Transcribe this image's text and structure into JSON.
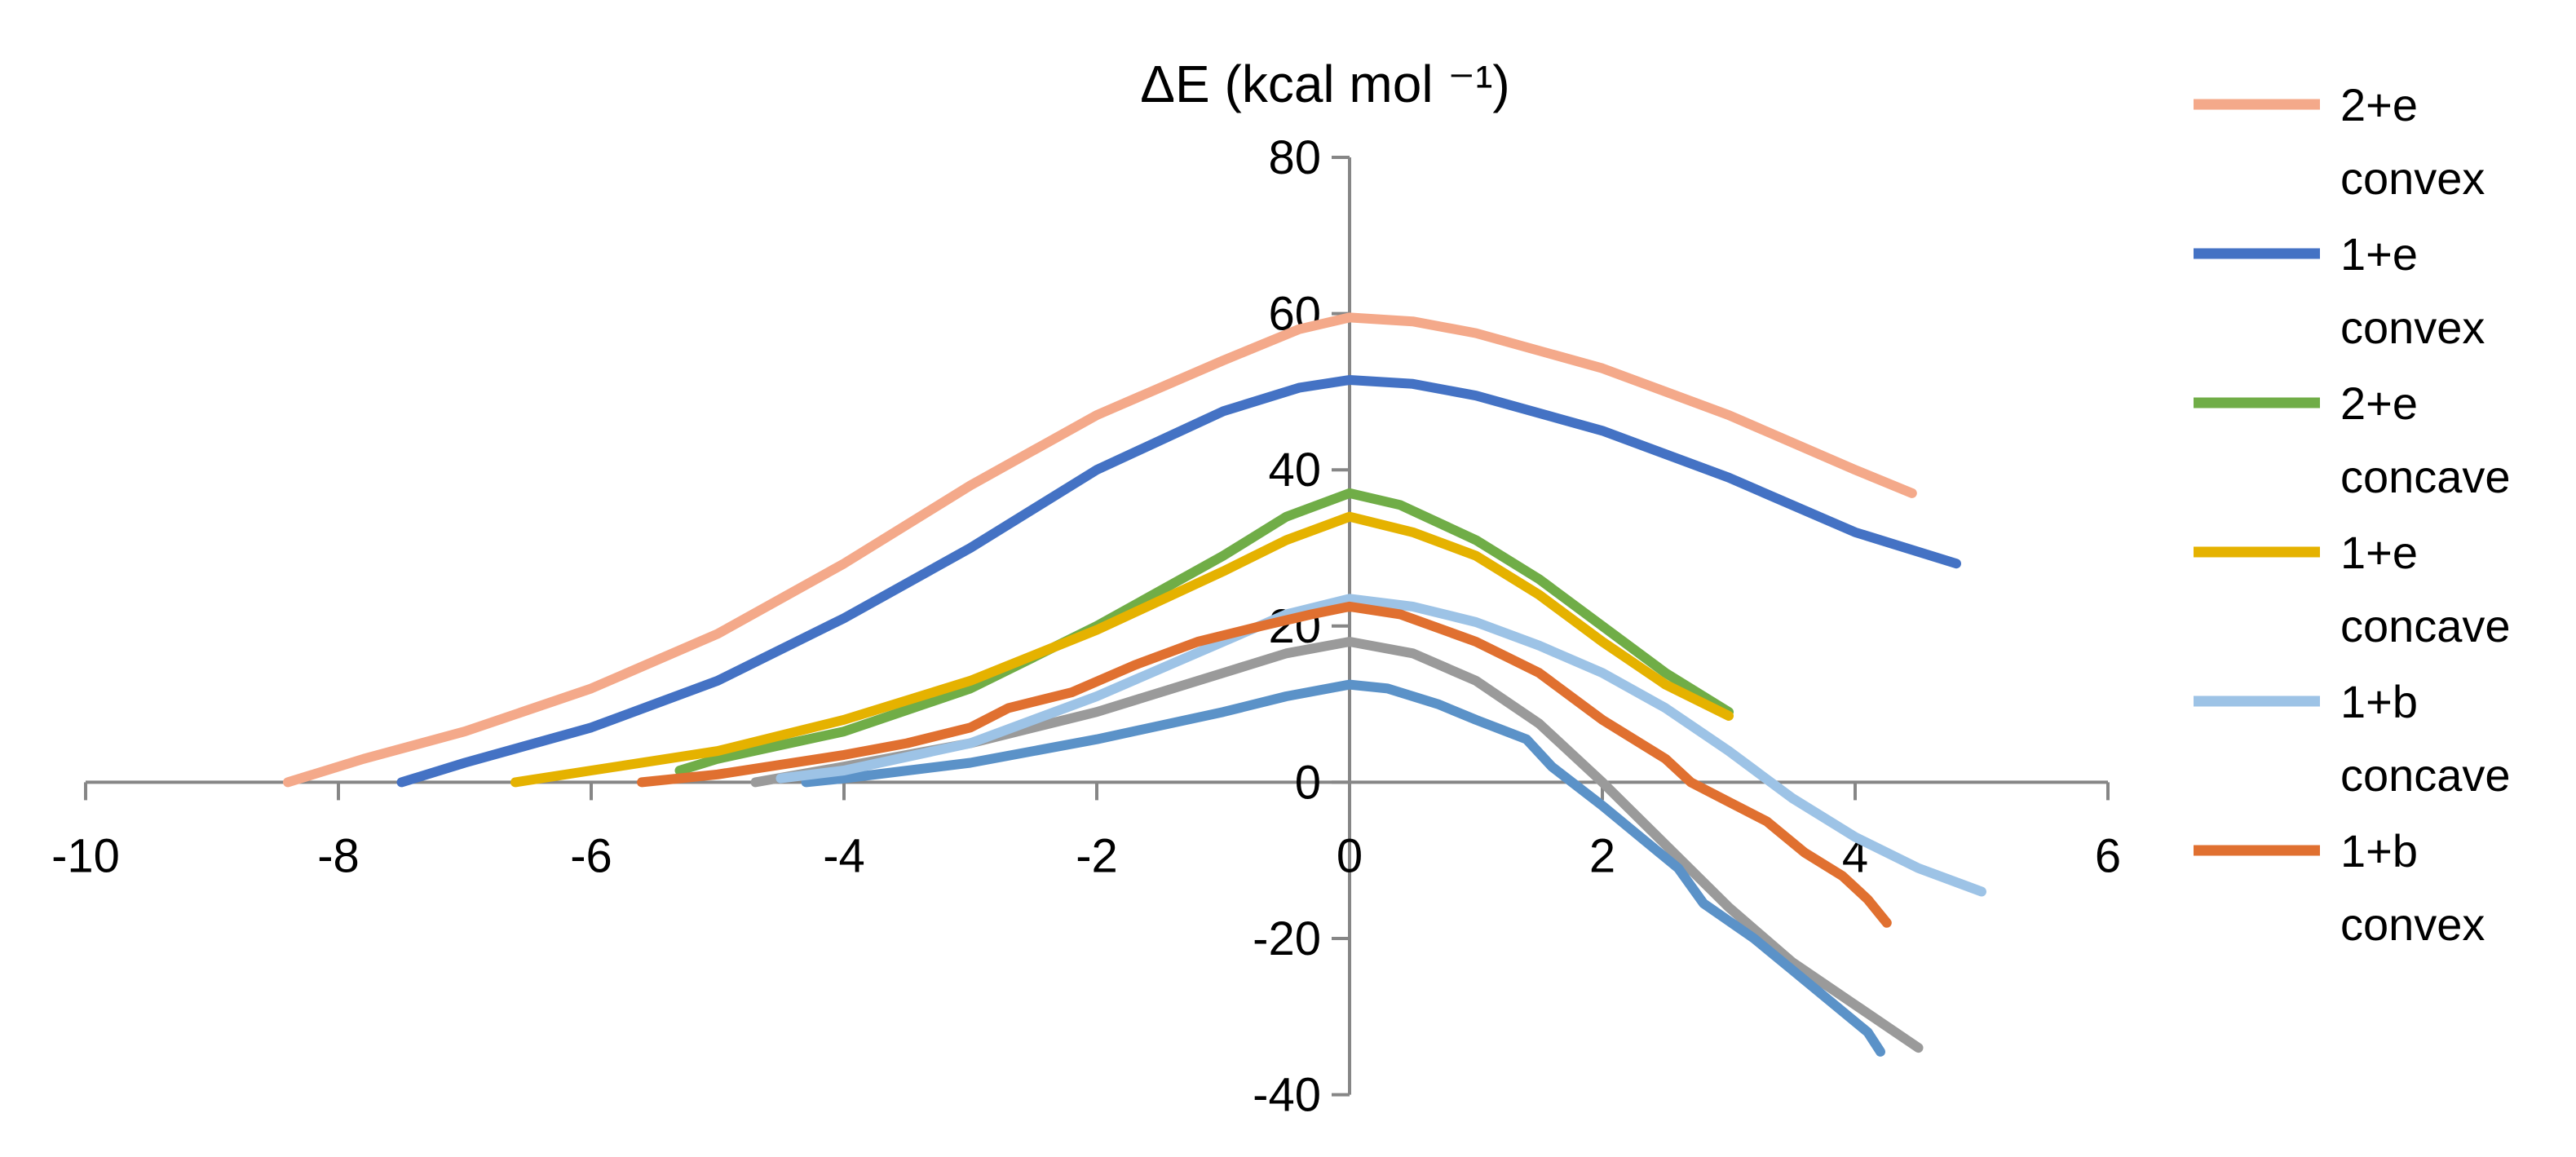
{
  "chart_data": {
    "type": "line",
    "title": "ΔE (kcal mol ⁻¹)",
    "xlabel": "",
    "ylabel": "",
    "xlim": [
      -10,
      6
    ],
    "ylim": [
      -40,
      80
    ],
    "x_ticks": [
      -10,
      -8,
      -6,
      -4,
      -2,
      0,
      2,
      4,
      6
    ],
    "y_ticks": [
      -40,
      -20,
      0,
      20,
      40,
      60,
      80
    ],
    "legend_position": "right",
    "series": [
      {
        "name_line1": "2+e",
        "name_line2": "convex",
        "color": "#f4a98a",
        "in_legend": true,
        "points": [
          [
            -8.4,
            0
          ],
          [
            -7.8,
            3
          ],
          [
            -7,
            6.5
          ],
          [
            -6,
            12
          ],
          [
            -5,
            19
          ],
          [
            -4,
            28
          ],
          [
            -3,
            38
          ],
          [
            -2,
            47
          ],
          [
            -1,
            54
          ],
          [
            -0.4,
            58
          ],
          [
            0,
            59.5
          ],
          [
            0.5,
            59
          ],
          [
            1,
            57.5
          ],
          [
            2,
            53
          ],
          [
            3,
            47
          ],
          [
            4,
            40
          ],
          [
            4.45,
            37
          ]
        ]
      },
      {
        "name_line1": "1+e",
        "name_line2": "convex",
        "color": "#4472c4",
        "in_legend": true,
        "points": [
          [
            -7.5,
            0
          ],
          [
            -7,
            2.5
          ],
          [
            -6,
            7
          ],
          [
            -5,
            13
          ],
          [
            -4,
            21
          ],
          [
            -3,
            30
          ],
          [
            -2,
            40
          ],
          [
            -1,
            47.5
          ],
          [
            -0.4,
            50.5
          ],
          [
            0,
            51.5
          ],
          [
            0.5,
            51
          ],
          [
            1,
            49.5
          ],
          [
            2,
            45
          ],
          [
            3,
            39
          ],
          [
            4,
            32
          ],
          [
            4.8,
            28
          ]
        ]
      },
      {
        "name_line1": "2+e",
        "name_line2": "concave",
        "color": "#70ad47",
        "in_legend": true,
        "points": [
          [
            -5.3,
            1.5
          ],
          [
            -5,
            3
          ],
          [
            -4,
            6.5
          ],
          [
            -3,
            12
          ],
          [
            -2,
            20
          ],
          [
            -1,
            29
          ],
          [
            -0.5,
            34
          ],
          [
            0,
            37
          ],
          [
            0.4,
            35.5
          ],
          [
            1,
            31
          ],
          [
            1.5,
            26
          ],
          [
            2,
            20
          ],
          [
            2.5,
            14
          ],
          [
            3,
            9
          ]
        ]
      },
      {
        "name_line1": "1+e",
        "name_line2": "concave",
        "color": "#e5b200",
        "in_legend": true,
        "points": [
          [
            -6.6,
            0
          ],
          [
            -6,
            1.5
          ],
          [
            -5,
            4
          ],
          [
            -4,
            8
          ],
          [
            -3,
            13
          ],
          [
            -2,
            19.5
          ],
          [
            -1,
            27
          ],
          [
            -0.5,
            31
          ],
          [
            0,
            34
          ],
          [
            0.5,
            32
          ],
          [
            1,
            29
          ],
          [
            1.5,
            24
          ],
          [
            2,
            18
          ],
          [
            2.5,
            12.5
          ],
          [
            3,
            8.5
          ]
        ]
      },
      {
        "name_line1": "1+b",
        "name_line2": "concave",
        "color": "#9dc3e6",
        "in_legend": true,
        "points": [
          [
            -4.5,
            0.5
          ],
          [
            -4,
            1.5
          ],
          [
            -3,
            5
          ],
          [
            -2,
            11
          ],
          [
            -1,
            18
          ],
          [
            -0.5,
            21.5
          ],
          [
            0,
            23.5
          ],
          [
            0.5,
            22.5
          ],
          [
            1,
            20.5
          ],
          [
            1.5,
            17.5
          ],
          [
            2,
            14
          ],
          [
            2.5,
            9.5
          ],
          [
            3,
            4
          ],
          [
            3.5,
            -2
          ],
          [
            4,
            -7
          ],
          [
            4.5,
            -11
          ],
          [
            5,
            -14
          ]
        ]
      },
      {
        "name_line1": "1+b",
        "name_line2": "convex",
        "color": "#e07030",
        "in_legend": true,
        "points": [
          [
            -5.6,
            0
          ],
          [
            -5,
            1
          ],
          [
            -4,
            3.5
          ],
          [
            -3.5,
            5
          ],
          [
            -3,
            7
          ],
          [
            -2.7,
            9.5
          ],
          [
            -2.2,
            11.5
          ],
          [
            -1.7,
            15
          ],
          [
            -1.2,
            18
          ],
          [
            -0.7,
            20
          ],
          [
            -0.3,
            21.5
          ],
          [
            0,
            22.5
          ],
          [
            0.4,
            21.5
          ],
          [
            1,
            18
          ],
          [
            1.5,
            14
          ],
          [
            2,
            8
          ],
          [
            2.5,
            3
          ],
          [
            2.7,
            0
          ],
          [
            3,
            -2.5
          ],
          [
            3.3,
            -5
          ],
          [
            3.6,
            -9
          ],
          [
            3.9,
            -12
          ],
          [
            4.1,
            -15
          ],
          [
            4.25,
            -18
          ]
        ]
      },
      {
        "name_line1": "",
        "name_line2": "",
        "color": "#9a9a9a",
        "in_legend": false,
        "points": [
          [
            -4.7,
            0
          ],
          [
            -4,
            2
          ],
          [
            -3,
            5
          ],
          [
            -2,
            9
          ],
          [
            -1,
            14
          ],
          [
            -0.5,
            16.5
          ],
          [
            0,
            18
          ],
          [
            0.5,
            16.5
          ],
          [
            1,
            13
          ],
          [
            1.5,
            7.5
          ],
          [
            2,
            0
          ],
          [
            2.5,
            -8
          ],
          [
            3,
            -16
          ],
          [
            3.5,
            -23
          ],
          [
            4,
            -28.5
          ],
          [
            4.5,
            -34
          ]
        ]
      },
      {
        "name_line1": "",
        "name_line2": "",
        "color": "#5b92c8",
        "in_legend": false,
        "points": [
          [
            -4.3,
            0
          ],
          [
            -4,
            0.5
          ],
          [
            -3,
            2.5
          ],
          [
            -2,
            5.5
          ],
          [
            -1,
            9
          ],
          [
            -0.5,
            11
          ],
          [
            0,
            12.5
          ],
          [
            0.3,
            12
          ],
          [
            0.7,
            10
          ],
          [
            1,
            8
          ],
          [
            1.4,
            5.5
          ],
          [
            1.6,
            2
          ],
          [
            2,
            -3
          ],
          [
            2.3,
            -7
          ],
          [
            2.6,
            -11
          ],
          [
            2.8,
            -15.5
          ],
          [
            3.2,
            -20
          ],
          [
            3.5,
            -24
          ],
          [
            3.8,
            -28
          ],
          [
            4.1,
            -32
          ],
          [
            4.2,
            -34.5
          ]
        ]
      }
    ]
  }
}
